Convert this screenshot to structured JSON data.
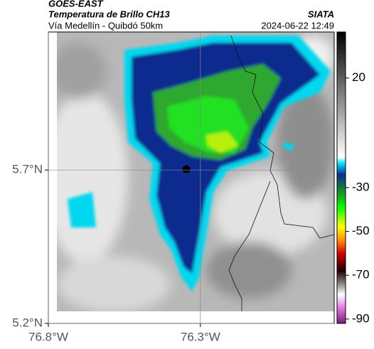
{
  "header": {
    "source": "GOES-EAST",
    "product": "Temperatura de Brillo CH13",
    "region": "Vía Medellín - Quibdó 50km",
    "agency": "SIATA",
    "datetime": "2024-06-22 12:49"
  },
  "map": {
    "xlim": [
      -76.8,
      -75.86
    ],
    "ylim": [
      5.2,
      6.15
    ],
    "xticks": [
      {
        "value": -76.8,
        "label": "76.8°W"
      },
      {
        "value": -76.3,
        "label": "76.3°W"
      }
    ],
    "yticks": [
      {
        "value": 5.7,
        "label": "5.7°N"
      },
      {
        "value": 5.2,
        "label": "5.2°N"
      }
    ],
    "grid": true
  },
  "colorbar": {
    "lim": [
      -92,
      41
    ],
    "ticks": [
      20,
      -30,
      -50,
      -70,
      -90
    ]
  }
}
